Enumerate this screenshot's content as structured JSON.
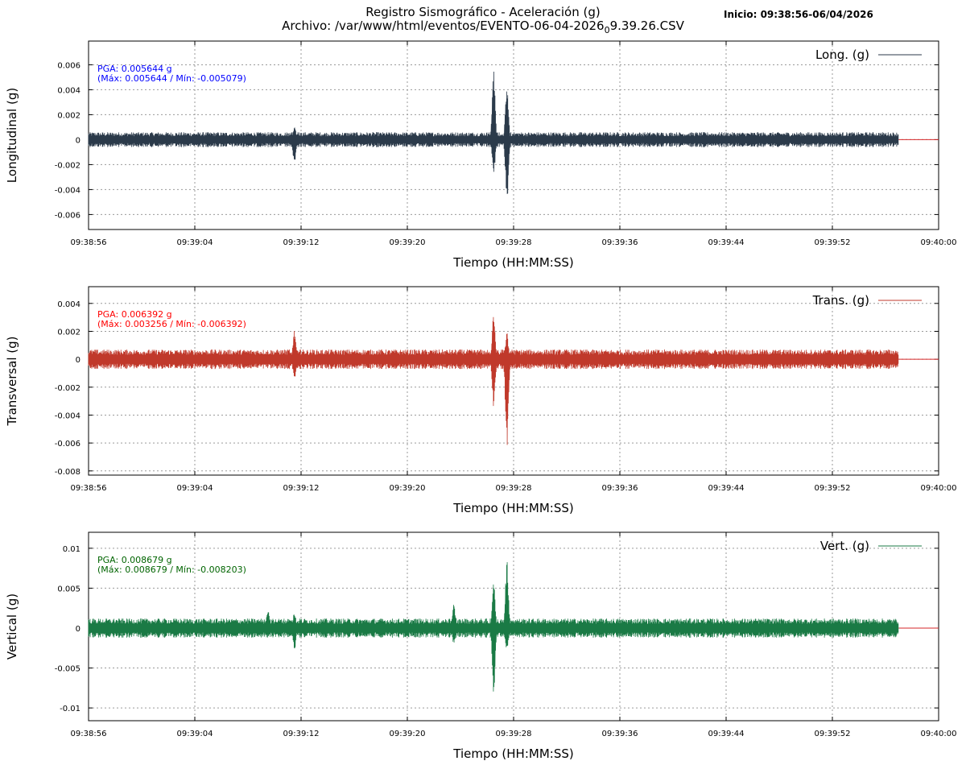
{
  "header": {
    "title_line1": "Registro Sismográfico - Aceleración (g)",
    "title_line2_main": "Archivo: /var/www/html/eventos/EVENTO-06-04-2026",
    "title_line2_sub": "0",
    "title_line2_tail": "9.39.26.CSV",
    "start_label": "Inicio: 09:38:56-06/04/2026"
  },
  "chart_data": [
    {
      "type": "line",
      "series": [
        {
          "name": "Long. (g)",
          "color": "#2b3a4a"
        }
      ],
      "ylabel": "Longitudinal (g)",
      "xlabel": "Tiempo (HH:MM:SS)",
      "xlim": [
        "09:38:56",
        "09:40:00"
      ],
      "x_ticks": [
        "09:38:56",
        "09:39:04",
        "09:39:12",
        "09:39:20",
        "09:39:28",
        "09:39:36",
        "09:39:44",
        "09:39:52",
        "09:40:00"
      ],
      "ylim": [
        -0.0072,
        0.0079
      ],
      "y_ticks": [
        -0.006,
        -0.004,
        -0.002,
        0,
        0.002,
        0.004,
        0.006
      ],
      "y_tick_labels": [
        "-0.006",
        "-0.004",
        "-0.002",
        "0",
        "0.002",
        "0.004",
        "0.006"
      ],
      "signal_end": "09:39:57",
      "baseline_color": "#d62728",
      "noise_amplitude": 0.0006,
      "bursts": [
        {
          "t": "09:39:11",
          "max": 0.0011,
          "min": -0.0019
        },
        {
          "t": "09:39:26",
          "max": 0.005644,
          "min": -0.0028
        },
        {
          "t": "09:39:27",
          "max": 0.0045,
          "min": -0.005079
        }
      ],
      "annotation_color": "#0000ff",
      "pga_text": "PGA: 0.005644 g",
      "minmax_text": "(Máx: 0.005644 / Mín: -0.005079)",
      "grid": true,
      "legend": "top-right"
    },
    {
      "type": "line",
      "series": [
        {
          "name": "Trans. (g)",
          "color": "#c0392b"
        }
      ],
      "ylabel": "Transversal (g)",
      "xlabel": "Tiempo (HH:MM:SS)",
      "xlim": [
        "09:38:56",
        "09:40:00"
      ],
      "x_ticks": [
        "09:38:56",
        "09:39:04",
        "09:39:12",
        "09:39:20",
        "09:39:28",
        "09:39:36",
        "09:39:44",
        "09:39:52",
        "09:40:00"
      ],
      "ylim": [
        -0.0083,
        0.0052
      ],
      "y_ticks": [
        -0.008,
        -0.006,
        -0.004,
        -0.002,
        0,
        0.002,
        0.004
      ],
      "y_tick_labels": [
        "-0.008",
        "-0.006",
        "-0.004",
        "-0.002",
        "0",
        "0.002",
        "0.004"
      ],
      "signal_end": "09:39:57",
      "baseline_color": "#d62728",
      "noise_amplitude": 0.0007,
      "bursts": [
        {
          "t": "09:39:11",
          "max": 0.0021,
          "min": -0.0015
        },
        {
          "t": "09:39:26",
          "max": 0.003256,
          "min": -0.0035
        },
        {
          "t": "09:39:27",
          "max": 0.0019,
          "min": -0.006392
        }
      ],
      "annotation_color": "#ff0000",
      "pga_text": "PGA: 0.006392 g",
      "minmax_text": "(Máx: 0.003256 / Mín: -0.006392)",
      "grid": true,
      "legend": "top-right"
    },
    {
      "type": "line",
      "series": [
        {
          "name": "Vert. (g)",
          "color": "#1a7a45"
        }
      ],
      "ylabel": "Vertical (g)",
      "xlabel": "Tiempo (HH:MM:SS)",
      "xlim": [
        "09:38:56",
        "09:40:00"
      ],
      "x_ticks": [
        "09:38:56",
        "09:39:04",
        "09:39:12",
        "09:39:20",
        "09:39:28",
        "09:39:36",
        "09:39:44",
        "09:39:52",
        "09:40:00"
      ],
      "ylim": [
        -0.0116,
        0.012
      ],
      "y_ticks": [
        -0.01,
        -0.005,
        0,
        0.005,
        0.01
      ],
      "y_tick_labels": [
        "-0.01",
        "-0.005",
        "0",
        "0.005",
        "0.01"
      ],
      "signal_end": "09:39:57",
      "baseline_color": "#d62728",
      "noise_amplitude": 0.0012,
      "bursts": [
        {
          "t": "09:39:09",
          "max": 0.0025,
          "min": -0.0012
        },
        {
          "t": "09:39:11",
          "max": 0.002,
          "min": -0.0028
        },
        {
          "t": "09:39:23",
          "max": 0.0032,
          "min": -0.002
        },
        {
          "t": "09:39:26",
          "max": 0.0062,
          "min": -0.008203
        },
        {
          "t": "09:39:27",
          "max": 0.008679,
          "min": -0.003
        }
      ],
      "annotation_color": "#006400",
      "pga_text": "PGA: 0.008679 g",
      "minmax_text": "(Máx: 0.008679 / Mín: -0.008203)",
      "grid": true,
      "legend": "top-right"
    }
  ]
}
